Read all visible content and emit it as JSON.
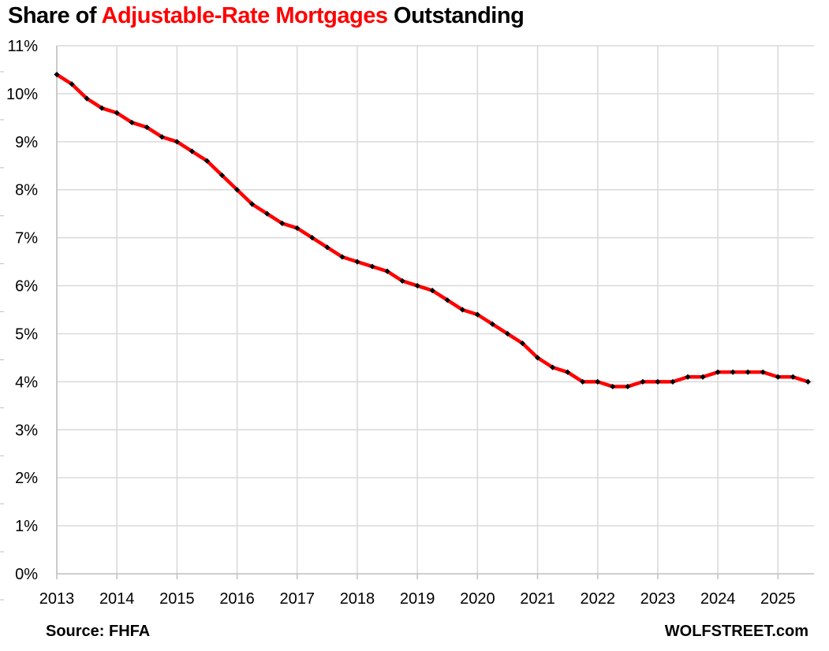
{
  "chart_data": {
    "type": "line",
    "title": {
      "prefix": "Share of ",
      "highlight": "Adjustable-Rate Mortgages",
      "suffix": " Outstanding"
    },
    "xlabel": "",
    "ylabel": "",
    "x_start": 2013.0,
    "x_step": 0.25,
    "xlim": [
      2013,
      2025.6
    ],
    "ylim": [
      0,
      11
    ],
    "y_ticks": [
      0,
      1,
      2,
      3,
      4,
      5,
      6,
      7,
      8,
      9,
      10,
      11
    ],
    "y_tick_labels": [
      "0%",
      "1%",
      "2%",
      "3%",
      "4%",
      "5%",
      "6%",
      "7%",
      "8%",
      "9%",
      "10%",
      "11%"
    ],
    "x_ticks": [
      2013,
      2014,
      2015,
      2016,
      2017,
      2018,
      2019,
      2020,
      2021,
      2022,
      2023,
      2024,
      2025
    ],
    "x_tick_labels": [
      "2013",
      "2014",
      "2015",
      "2016",
      "2017",
      "2018",
      "2019",
      "2020",
      "2021",
      "2022",
      "2023",
      "2024",
      "2025"
    ],
    "grid": true,
    "series": [
      {
        "name": "ARM share",
        "line_color": "#ff0000",
        "marker_color": "#000000",
        "values": [
          10.4,
          10.2,
          9.9,
          9.7,
          9.6,
          9.4,
          9.3,
          9.1,
          9.0,
          8.8,
          8.6,
          8.3,
          8.0,
          7.7,
          7.5,
          7.3,
          7.2,
          7.0,
          6.8,
          6.6,
          6.5,
          6.4,
          6.3,
          6.1,
          6.0,
          5.9,
          5.7,
          5.5,
          5.4,
          5.2,
          5.0,
          4.8,
          4.5,
          4.3,
          4.2,
          4.0,
          4.0,
          3.9,
          3.9,
          4.0,
          4.0,
          4.0,
          4.1,
          4.1,
          4.2,
          4.2,
          4.2,
          4.2,
          4.1,
          4.1,
          4.0
        ]
      }
    ]
  },
  "footer": {
    "source": "Source: FHFA",
    "credit": "WOLFSTREET.com"
  }
}
